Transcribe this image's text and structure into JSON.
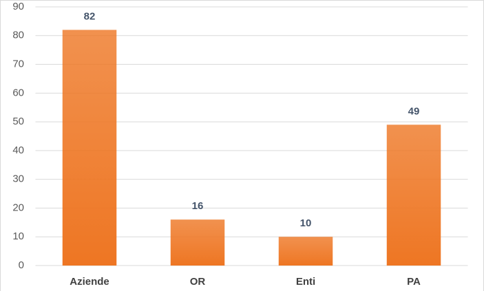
{
  "chart_data": {
    "type": "bar",
    "categories": [
      "Aziende",
      "OR",
      "Enti",
      "PA"
    ],
    "values": [
      82,
      16,
      10,
      49
    ],
    "color": "#ee7623",
    "ylim": [
      0,
      90
    ],
    "yticks": [
      0,
      10,
      20,
      30,
      40,
      50,
      60,
      70,
      80,
      90
    ],
    "grid": true
  }
}
